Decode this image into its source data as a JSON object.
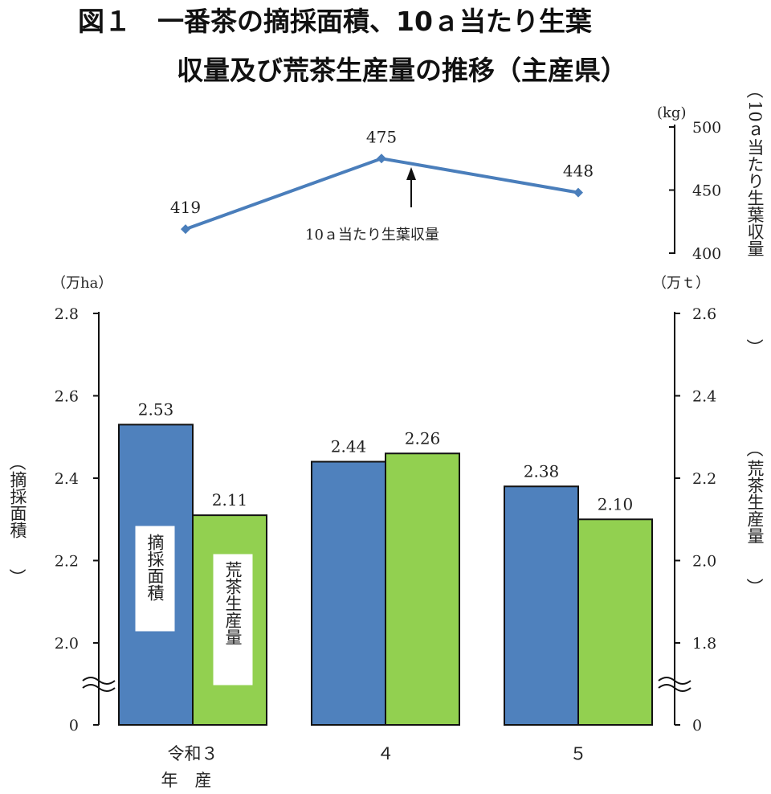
{
  "chart_data": {
    "type": "bar",
    "title_line1": "図１　一番茶の摘採面積、10ａ当たり生葉",
    "title_line2": "収量及び荒茶生産量の推移（主産県）",
    "categories": [
      {
        "line1": "令和３",
        "line2": "年　産"
      },
      {
        "line1": "４",
        "line2": ""
      },
      {
        "line1": "５",
        "line2": ""
      }
    ],
    "series": [
      {
        "key": "area",
        "name": "摘採面積",
        "axis": "left",
        "color": "#4f81bd",
        "values": [
          2.53,
          2.44,
          2.38
        ],
        "labels": [
          "2.53",
          "2.44",
          "2.38"
        ]
      },
      {
        "key": "production",
        "name": "荒茶生産量",
        "axis": "right",
        "color": "#92d050",
        "values": [
          2.11,
          2.26,
          2.1
        ],
        "labels": [
          "2.11",
          "2.26",
          "2.10"
        ]
      }
    ],
    "line_series": {
      "name": "10ａ当たり生葉収量",
      "color": "#4a7ebb",
      "values": [
        419,
        475,
        448
      ],
      "labels": [
        "419",
        "475",
        "448"
      ]
    },
    "axes": {
      "left": {
        "label": "摘採面積",
        "unit": "（万ha）",
        "ticks": [
          "2.8",
          "2.6",
          "2.4",
          "2.2",
          "2.0",
          "0"
        ],
        "range": [
          2.0,
          2.8
        ],
        "broken": true
      },
      "right": {
        "label": "荒茶生産量",
        "unit": "（万ｔ）",
        "ticks": [
          "2.6",
          "2.4",
          "2.2",
          "2.0",
          "1.8",
          "0"
        ],
        "range": [
          1.8,
          2.6
        ],
        "broken": true
      },
      "top_right": {
        "label": "10ａ当たり生葉収量",
        "unit": "(kg)",
        "ticks": [
          "500",
          "450",
          "400"
        ],
        "range": [
          400,
          500
        ]
      }
    },
    "legend": "labels inside bars and arrow annotation",
    "grid": false
  }
}
